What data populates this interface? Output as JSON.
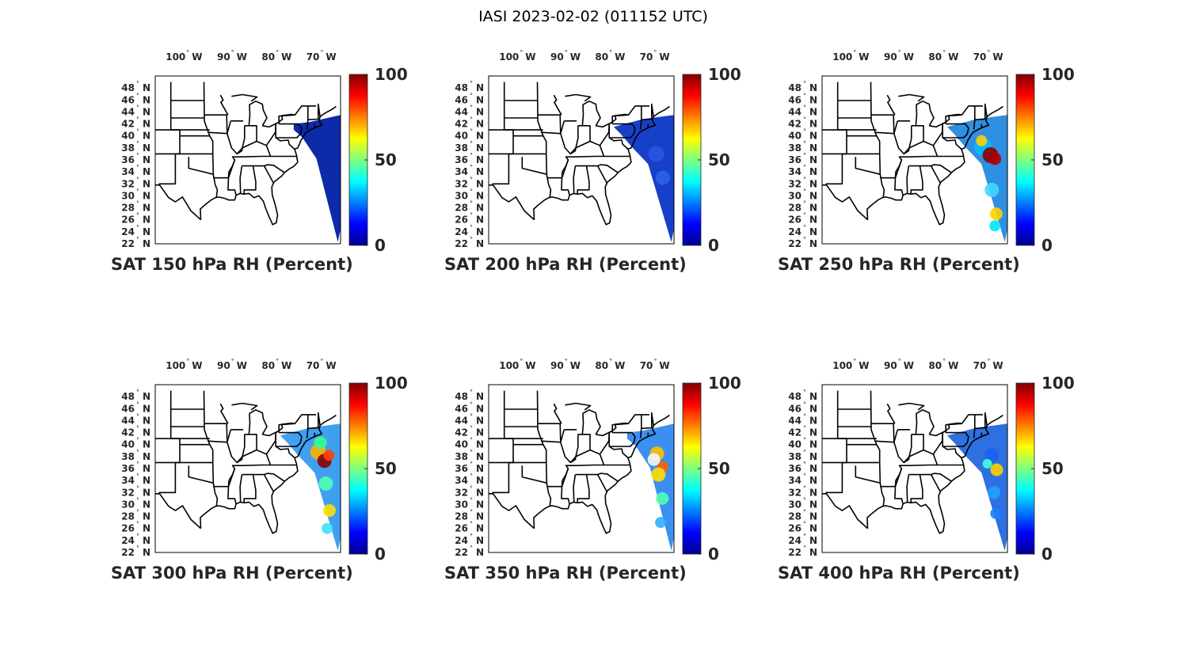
{
  "figure": {
    "title": "IASI 2023-02-02 (011152 UTC)"
  },
  "map": {
    "lon_ticks": [
      "100",
      "90",
      "80",
      "70"
    ],
    "lon_hemisphere": "W",
    "lat_ticks": [
      "48",
      "46",
      "44",
      "42",
      "40",
      "38",
      "36",
      "34",
      "32",
      "30",
      "28",
      "26",
      "24",
      "22"
    ],
    "lat_hemisphere": "N",
    "degree_symbol": "°"
  },
  "colorbar": {
    "colormap": "jet",
    "ticks": [
      "100",
      "50",
      "0"
    ],
    "range": [
      0,
      100
    ]
  },
  "panels": [
    {
      "title": "SAT 150 hPa RH (Percent)",
      "swath_fill": "mostly-dry",
      "dominant_color": "#0d2aa8"
    },
    {
      "title": "SAT 200 hPa RH (Percent)",
      "swath_fill": "mostly-dry",
      "dominant_color": "#1740c8"
    },
    {
      "title": "SAT 250 hPa RH (Percent)",
      "swath_fill": "moist-core",
      "dominant_color": "#2f8fe0"
    },
    {
      "title": "SAT 300 hPa RH (Percent)",
      "swath_fill": "moist-core",
      "dominant_color": "#3fa0f0"
    },
    {
      "title": "SAT 350 hPa RH (Percent)",
      "swath_fill": "mixed",
      "dominant_color": "#3b8ff0"
    },
    {
      "title": "SAT 400 hPa RH (Percent)",
      "swath_fill": "mixed",
      "dominant_color": "#2f70e0"
    }
  ]
}
